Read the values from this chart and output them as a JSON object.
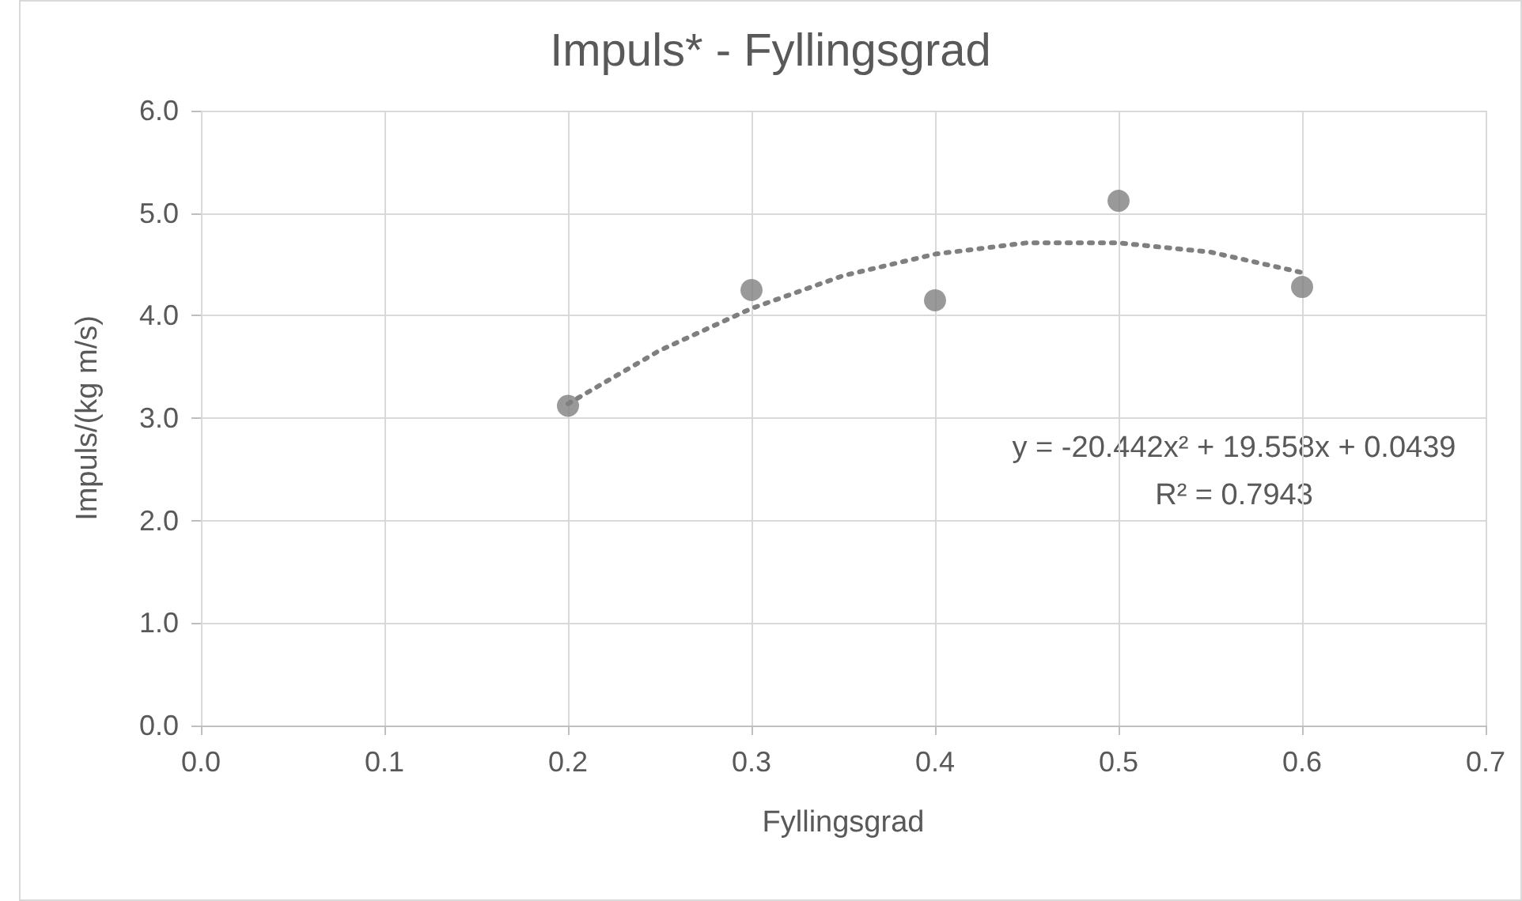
{
  "chart_data": {
    "type": "scatter",
    "title": "Impuls* - Fyllingsgrad",
    "xlabel": "Fyllingsgrad",
    "ylabel": "Impuls/(kg m/s)",
    "series": [
      {
        "color": "#7f7f7f",
        "marker": "circle",
        "x": [
          0.2,
          0.3,
          0.4,
          0.5,
          0.6
        ],
        "values": [
          3.12,
          4.25,
          4.15,
          5.12,
          4.28
        ]
      },
      {
        "type": "line",
        "color": "#7f7f7f",
        "marker": "none",
        "line_style": "dotted",
        "x": [
          0.2,
          0.25,
          0.3,
          0.35,
          0.4,
          0.45,
          0.5,
          0.55,
          0.6
        ],
        "values": [
          3.14,
          3.66,
          4.07,
          4.39,
          4.6,
          4.71,
          4.71,
          4.62,
          4.42
        ]
      }
    ],
    "xlim": [
      0,
      0.7
    ],
    "xticks": [
      {
        "value": 0,
        "label": "0.0"
      },
      0.1,
      0.2,
      0.3,
      0.4,
      0.5,
      0.6,
      0.7
    ],
    "ylim": [
      0,
      6
    ],
    "yticks": [
      {
        "value": 0,
        "label": "0.0"
      },
      {
        "value": 1,
        "label": "1.0"
      },
      {
        "value": 2,
        "label": "2.0"
      },
      {
        "value": 3,
        "label": "3.0"
      },
      {
        "value": 4,
        "label": "4.0"
      },
      {
        "value": 5,
        "label": "5.0"
      },
      {
        "value": 6,
        "label": "6.0"
      }
    ],
    "grid": true,
    "annotations": [
      "y = -20.442x² + 19.558x + 0.0439",
      "R² = 0.7943"
    ]
  }
}
